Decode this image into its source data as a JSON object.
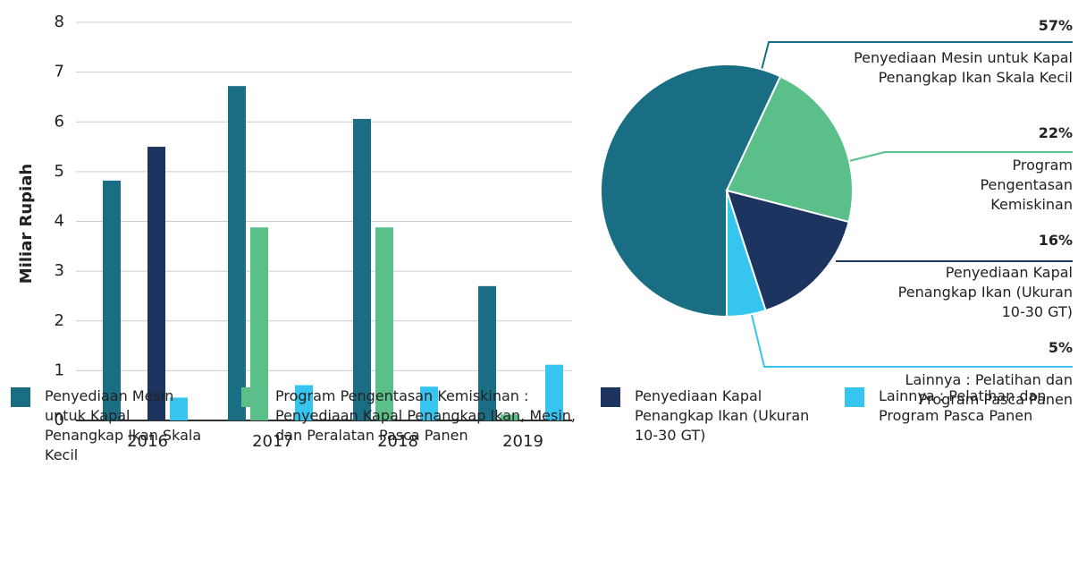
{
  "chart_data": [
    {
      "type": "bar",
      "ylabel": "Miliar Rupiah",
      "categories": [
        "2016",
        "2017",
        "2018",
        "2019"
      ],
      "series": [
        {
          "name": "Penyediaan Mesin untuk Kapal Penangkap Ikan Skala Kecil",
          "color": "#1a6e84",
          "values": [
            4.82,
            6.72,
            6.06,
            2.7
          ]
        },
        {
          "name": "Program Pengentasan Kemiskinan : Penyediaan Kapal Penangkap Ikan, Mesin, dan Peralatan Pasca Panen",
          "color": "#5bbf8a",
          "values": [
            0,
            3.88,
            3.88,
            0.12
          ]
        },
        {
          "name": "Penyediaan Kapal Penangkap Ikan (Ukuran 10-30 GT)",
          "color": "#1d3461",
          "values": [
            5.5,
            0,
            0,
            0
          ]
        },
        {
          "name": "Lainnya : Pelatihan dan Program Pasca Panen",
          "color": "#35c5ee",
          "values": [
            0.46,
            0.71,
            0.68,
            1.12
          ]
        }
      ],
      "ylim": [
        0,
        8
      ],
      "yticks": [
        0,
        1,
        2,
        3,
        4,
        5,
        6,
        7,
        8
      ],
      "grid": true
    },
    {
      "type": "pie",
      "labels": [
        "Penyediaan Mesin untuk Kapal Penangkap Ikan Skala Kecil",
        "Program Pengentasan Kemiskinan",
        "Penyediaan Kapal Penangkap Ikan (Ukuran 10-30 GT)",
        "Lainnya : Pelatihan dan Program Pasca Panen"
      ],
      "values": [
        57,
        22,
        16,
        5
      ],
      "value_labels": [
        "57%",
        "22%",
        "16%",
        "5%"
      ],
      "colors": [
        "#1a6e84",
        "#5bbf8a",
        "#1d3461",
        "#35c5ee"
      ]
    }
  ]
}
